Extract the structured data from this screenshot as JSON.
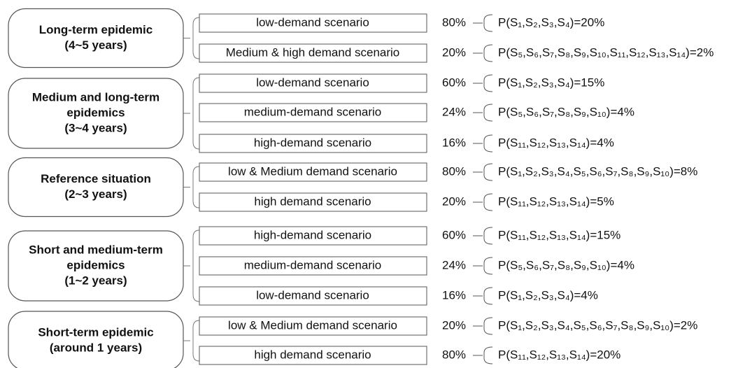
{
  "groups": [
    {
      "label": [
        "Long-term epidemic",
        "(4~5 years)"
      ],
      "scenarios": [
        {
          "name": "low-demand scenario",
          "share": "80%",
          "formula": "P(S₁,S₂,S₃,S₄)=20%"
        },
        {
          "name": "Medium & high demand scenario",
          "share": "20%",
          "formula": "P(S₅,S₆,S₇,S₈,S₉,S₁₀,S₁₁,S₁₂,S₁₃,S₁₄)=2%"
        }
      ]
    },
    {
      "label": [
        "Medium and long-term",
        "epidemics",
        "(3~4 years)"
      ],
      "scenarios": [
        {
          "name": "low-demand scenario",
          "share": "60%",
          "formula": "P(S₁,S₂,S₃,S₄)=15%"
        },
        {
          "name": "medium-demand scenario",
          "share": "24%",
          "formula": "P(S₅,S₆,S₇,S₈,S₉,S₁₀)=4%"
        },
        {
          "name": "high-demand scenario",
          "share": "16%",
          "formula": "P(S₁₁,S₁₂,S₁₃,S₁₄)=4%"
        }
      ]
    },
    {
      "label": [
        "Reference situation",
        "(2~3 years)"
      ],
      "scenarios": [
        {
          "name": "low & Medium demand scenario",
          "share": "80%",
          "formula": "P(S₁,S₂,S₃,S₄,S₅,S₆,S₇,S₈,S₉,S₁₀)=8%"
        },
        {
          "name": "high demand scenario",
          "share": "20%",
          "formula": "P(S₁₁,S₁₂,S₁₃,S₁₄)=5%"
        }
      ]
    },
    {
      "label": [
        "Short and medium-term",
        "epidemics",
        "(1~2 years)"
      ],
      "scenarios": [
        {
          "name": "high-demand scenario",
          "share": "60%",
          "formula": "P(S₁₁,S₁₂,S₁₃,S₁₄)=15%"
        },
        {
          "name": "medium-demand scenario",
          "share": "24%",
          "formula": "P(S₅,S₆,S₇,S₈,S₉,S₁₀)=4%"
        },
        {
          "name": "low-demand scenario",
          "share": "16%",
          "formula": "P(S₁,S₂,S₃,S₄)=4%"
        }
      ]
    },
    {
      "label": [
        "Short-term epidemic",
        "(around 1 years)"
      ],
      "scenarios": [
        {
          "name": "low & Medium demand scenario",
          "share": "20%",
          "formula": "P(S₁,S₂,S₃,S₄,S₅,S₆,S₇,S₈,S₉,S₁₀)=2%"
        },
        {
          "name": "high demand scenario",
          "share": "80%",
          "formula": "P(S₁₁,S₁₂,S₁₃,S₁₄)=20%"
        }
      ]
    }
  ]
}
